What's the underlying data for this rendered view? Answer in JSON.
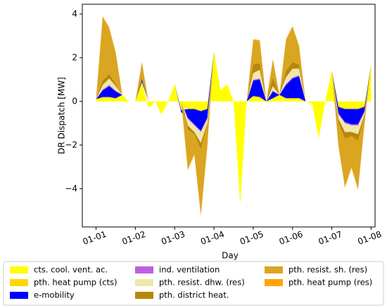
{
  "chart_data": {
    "type": "area",
    "stacked": true,
    "xlabel": "Day",
    "ylabel": "DR Dispatch [MW]",
    "x": [
      0,
      0.167,
      0.333,
      0.5,
      0.667,
      0.833,
      1,
      1.167,
      1.333,
      1.5,
      1.667,
      1.833,
      2,
      2.167,
      2.333,
      2.5,
      2.667,
      2.833,
      3,
      3.167,
      3.333,
      3.5,
      3.667,
      3.833,
      4,
      4.167,
      4.333,
      4.5,
      4.667,
      4.833,
      5,
      5.167,
      5.333,
      5.5,
      5.667,
      5.833,
      6,
      6.167,
      6.333,
      6.5,
      6.667,
      6.833,
      7
    ],
    "xlim": [
      -0.35,
      7.1
    ],
    "xticks": [
      {
        "value": 0,
        "label": "01-01"
      },
      {
        "value": 1,
        "label": "01-02"
      },
      {
        "value": 2,
        "label": "01-03"
      },
      {
        "value": 3,
        "label": "01-04"
      },
      {
        "value": 4,
        "label": "01-05"
      },
      {
        "value": 5,
        "label": "01-06"
      },
      {
        "value": 6,
        "label": "01-07"
      },
      {
        "value": 7,
        "label": "01-08"
      }
    ],
    "ylim": [
      -5.75,
      4.45
    ],
    "yticks": [
      {
        "value": -4,
        "label": "−4"
      },
      {
        "value": -2,
        "label": "−2"
      },
      0,
      2,
      4
    ],
    "legend": "bottom",
    "series": [
      {
        "name": "cts. cool. vent. ac.",
        "color": "#ffff00",
        "values": [
          0.1,
          0.15,
          0.15,
          0.1,
          0.3,
          0,
          0,
          0.9,
          -0.3,
          0,
          -0.6,
          0,
          0.8,
          -0.4,
          -0.3,
          -0.3,
          -0.4,
          -0.3,
          2.3,
          0.5,
          0.8,
          0,
          -4.7,
          0,
          0.2,
          0.15,
          0,
          0.1,
          0.3,
          0.1,
          0.1,
          0.1,
          0,
          -0.1,
          -1.7,
          0,
          1.4,
          -0.2,
          -0.3,
          -0.3,
          -0.3,
          -0.2,
          1.7
        ]
      },
      {
        "name": "pth. heat pump (cts)",
        "color": "#ffd700",
        "values": [
          0,
          0.05,
          0.05,
          0.05,
          0,
          0,
          0,
          0,
          0,
          0,
          0,
          0,
          0,
          0,
          -0.05,
          -0.05,
          -0.05,
          -0.05,
          0,
          0,
          0,
          0,
          0,
          0,
          0.05,
          0.05,
          0,
          0.05,
          0,
          0.05,
          0.05,
          0.05,
          0,
          0,
          0,
          0,
          0,
          -0.05,
          -0.05,
          -0.05,
          -0.05,
          -0.05,
          0
        ]
      },
      {
        "name": "e-mobility",
        "color": "#0000ff",
        "values": [
          0,
          0.3,
          0.5,
          0.3,
          0,
          0,
          0,
          0.1,
          0,
          0,
          0,
          0,
          0,
          -0.1,
          -0.4,
          -0.7,
          -0.9,
          -0.4,
          0,
          0,
          0,
          0,
          0,
          0,
          0.7,
          0.8,
          0,
          0.3,
          0,
          0.6,
          0.9,
          1.0,
          0,
          0,
          0,
          0,
          0,
          -0.3,
          -0.6,
          -0.7,
          -0.7,
          -0.2,
          0
        ]
      },
      {
        "name": "ind. ventilation",
        "color": "#bf5fdf",
        "values": [
          0,
          0.05,
          0.05,
          0.05,
          0,
          0,
          0,
          0,
          0,
          0,
          0,
          0,
          0,
          0,
          -0.05,
          -0.05,
          -0.05,
          -0.05,
          0,
          0,
          0,
          0,
          0,
          0,
          0.05,
          0.05,
          0,
          0.05,
          0,
          0.05,
          0.05,
          0.05,
          0,
          0,
          0,
          0,
          0,
          -0.05,
          -0.05,
          -0.05,
          -0.05,
          -0.05,
          0
        ]
      },
      {
        "name": "pth. resist. dhw. (res)",
        "color": "#eee8aa",
        "values": [
          0,
          0.2,
          0.3,
          0.2,
          0,
          0,
          0,
          0,
          0,
          0,
          0,
          0,
          0,
          0,
          -0.3,
          -0.3,
          -0.5,
          -0.2,
          0,
          0,
          0,
          0,
          0,
          0,
          0.3,
          0.4,
          0,
          0.2,
          0,
          0.3,
          0.4,
          0.3,
          0,
          0,
          0,
          0,
          0,
          -0.2,
          -0.4,
          -0.3,
          -0.4,
          -0.1,
          0
        ]
      },
      {
        "name": "pth. district heat.",
        "color": "#b8860b",
        "values": [
          0,
          0.2,
          0.2,
          0.1,
          0,
          0,
          0,
          0.1,
          0,
          0,
          0,
          0,
          0,
          0,
          -0.2,
          -0.1,
          -0.3,
          -0.1,
          0,
          0,
          0,
          0,
          0,
          0,
          0.4,
          0.3,
          0,
          0.4,
          0,
          0.3,
          0.3,
          0.2,
          0,
          0,
          0,
          0,
          0,
          -0.2,
          -0.3,
          -0.2,
          -0.3,
          -0.1,
          0
        ]
      },
      {
        "name": "pth. resist. sh. (res)",
        "color": "#daa520",
        "values": [
          0,
          2.9,
          2.1,
          1.4,
          0,
          0,
          0,
          0.7,
          0,
          0,
          0,
          0,
          0,
          0,
          -1.8,
          -0.9,
          -3.0,
          -0.9,
          0,
          0,
          0,
          0,
          0,
          0,
          1.1,
          1.0,
          0,
          0.8,
          0,
          1.4,
          1.6,
          0.8,
          0,
          0,
          0,
          0,
          0,
          -1.0,
          -2.2,
          -1.4,
          -2.2,
          -0.3,
          0
        ]
      },
      {
        "name": "pth. heat pump (res)",
        "color": "#ffa500",
        "values": [
          0,
          0.05,
          0.05,
          0.05,
          0,
          0,
          0,
          0,
          0,
          0,
          0,
          0,
          0,
          0,
          -0.05,
          -0.05,
          -0.05,
          -0.05,
          0,
          0,
          0,
          0,
          0,
          0,
          0.05,
          0.05,
          0,
          0.05,
          0,
          0.05,
          0.05,
          0.05,
          0,
          0,
          0,
          0,
          0,
          -0.05,
          -0.05,
          -0.05,
          -0.05,
          -0.05,
          0
        ]
      }
    ]
  }
}
